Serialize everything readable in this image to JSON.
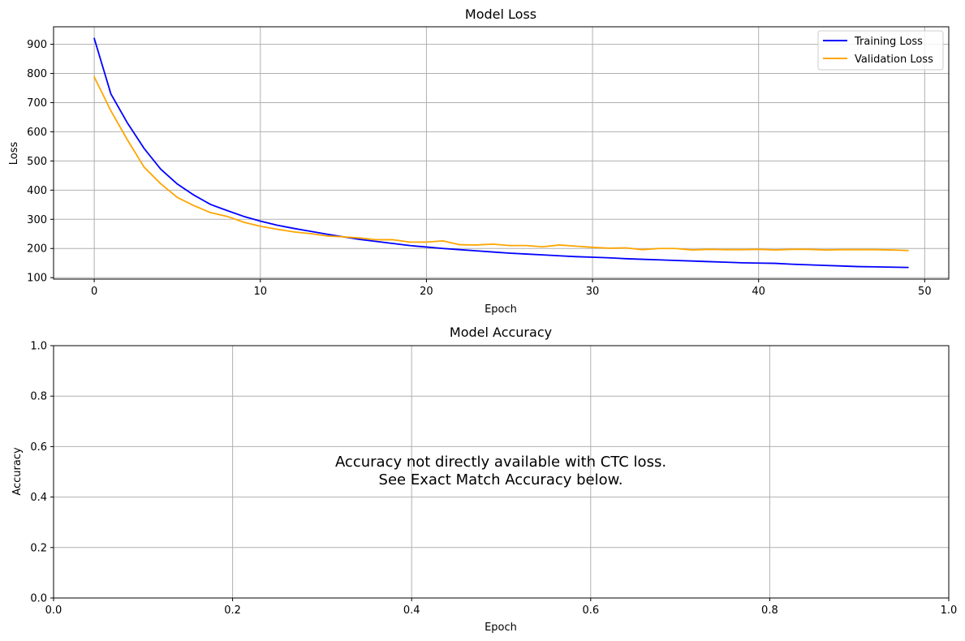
{
  "chart_data": [
    {
      "type": "line",
      "title": "Model Loss",
      "xlabel": "Epoch",
      "ylabel": "Loss",
      "xlim": [
        -2.45,
        51.45
      ],
      "ylim": [
        95,
        960
      ],
      "xticks": [
        0,
        10,
        20,
        30,
        40,
        50
      ],
      "yticks": [
        100,
        200,
        300,
        400,
        500,
        600,
        700,
        800,
        900
      ],
      "grid": true,
      "legend": "top-right",
      "x": [
        0,
        1,
        2,
        3,
        4,
        5,
        6,
        7,
        8,
        9,
        10,
        11,
        12,
        13,
        14,
        15,
        16,
        17,
        18,
        19,
        20,
        21,
        22,
        23,
        24,
        25,
        26,
        27,
        28,
        29,
        30,
        31,
        32,
        33,
        34,
        35,
        36,
        37,
        38,
        39,
        40,
        41,
        42,
        43,
        44,
        45,
        46,
        47,
        48,
        49
      ],
      "series": [
        {
          "name": "Training Loss",
          "color": "#0000ff",
          "values": [
            920,
            730,
            630,
            543,
            472,
            421,
            383,
            351,
            330,
            310,
            294,
            280,
            269,
            259,
            249,
            240,
            231,
            224,
            217,
            210,
            205,
            200,
            196,
            192,
            188,
            184,
            181,
            178,
            175,
            172,
            170,
            168,
            165,
            163,
            161,
            159,
            157,
            155,
            153,
            151,
            150,
            149,
            146,
            144,
            142,
            140,
            138,
            137,
            136,
            135
          ]
        },
        {
          "name": "Validation Loss",
          "color": "#ffa500",
          "values": [
            788,
            672,
            572,
            479,
            422,
            375,
            347,
            323,
            310,
            290,
            276,
            266,
            257,
            251,
            243,
            240,
            236,
            230,
            230,
            222,
            222,
            226,
            213,
            212,
            215,
            210,
            210,
            206,
            212,
            208,
            204,
            201,
            202,
            196,
            200,
            200,
            195,
            197,
            196,
            196,
            197,
            195,
            197,
            197,
            195,
            196,
            196,
            196,
            195,
            193
          ]
        }
      ]
    },
    {
      "type": "line",
      "title": "Model Accuracy",
      "xlabel": "Epoch",
      "ylabel": "Accuracy",
      "xlim": [
        0,
        1
      ],
      "ylim": [
        0,
        1
      ],
      "xticks": [
        "0.0",
        "0.2",
        "0.4",
        "0.6",
        "0.8",
        "1.0"
      ],
      "yticks": [
        "0.0",
        "0.2",
        "0.4",
        "0.6",
        "0.8",
        "1.0"
      ],
      "grid": true,
      "series": [],
      "annotation": [
        "Accuracy not directly available with CTC loss.",
        "See Exact Match Accuracy below."
      ]
    }
  ]
}
